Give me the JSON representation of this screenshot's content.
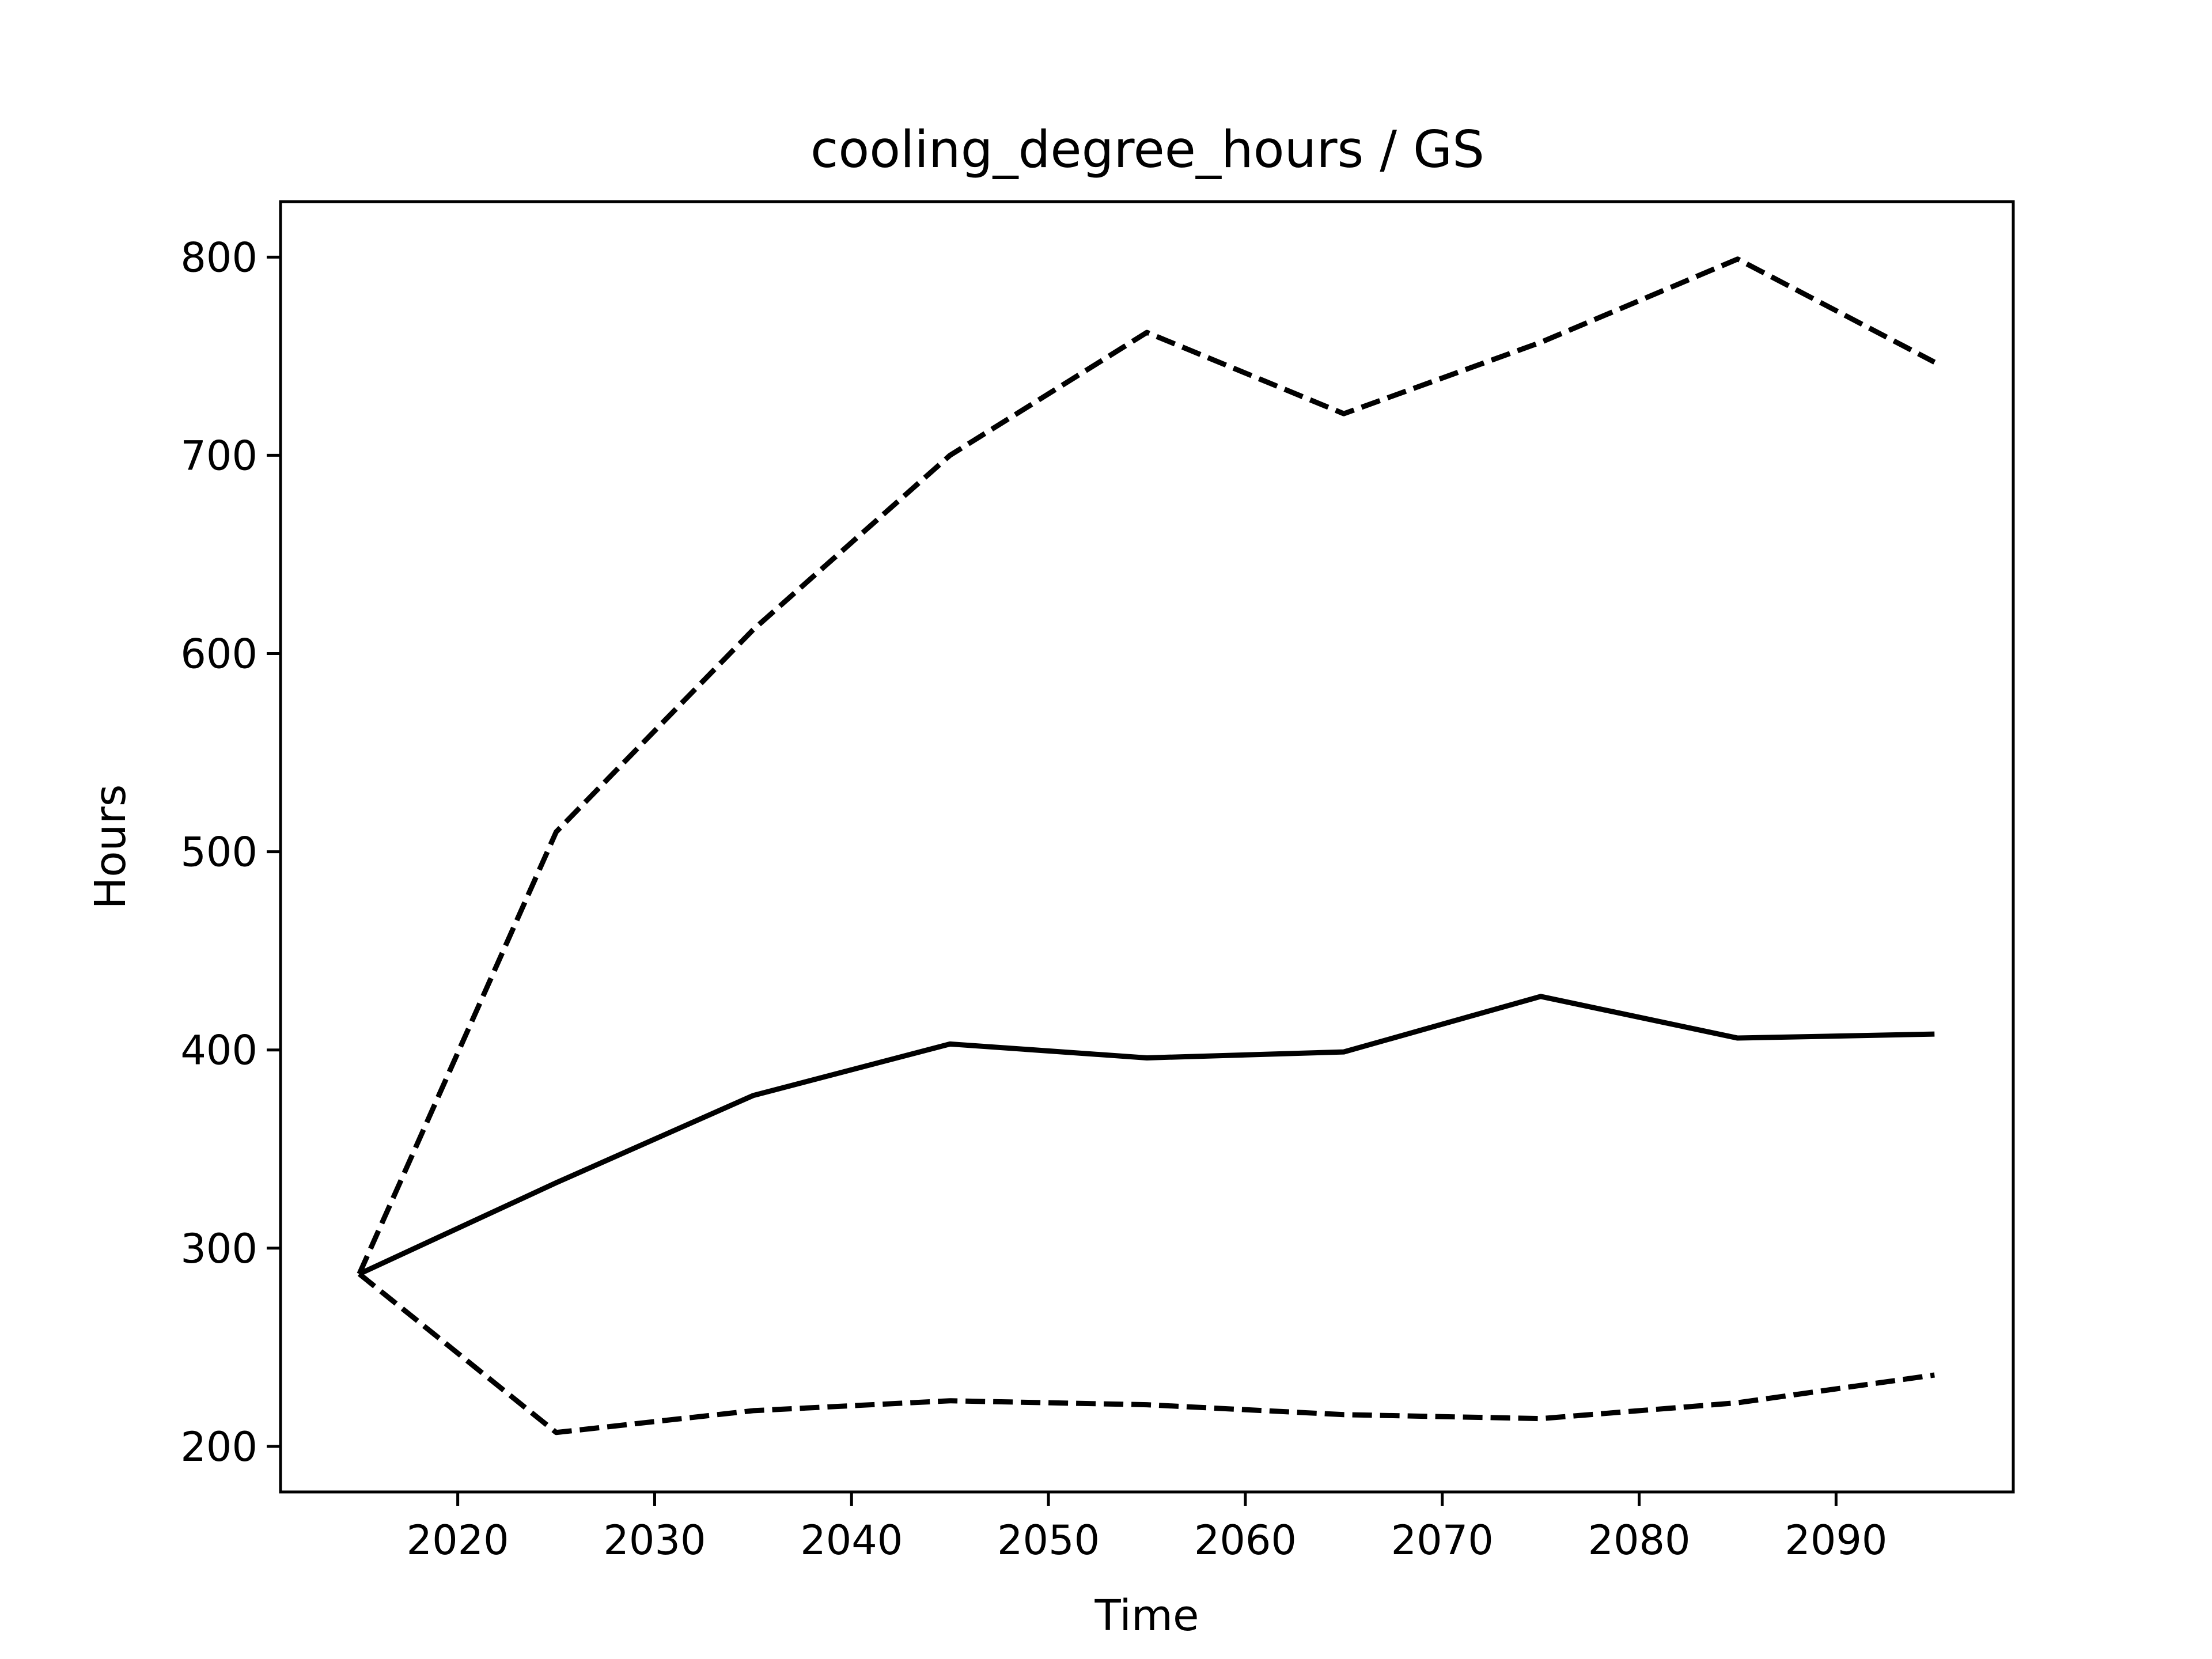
{
  "chart_data": {
    "type": "line",
    "title": "cooling_degree_hours / GS",
    "xlabel": "Time",
    "ylabel": "Hours",
    "xlim": [
      2011,
      2099
    ],
    "ylim": [
      177,
      828
    ],
    "x_ticks": [
      2020,
      2030,
      2040,
      2050,
      2060,
      2070,
      2080,
      2090
    ],
    "y_ticks": [
      200,
      300,
      400,
      500,
      600,
      700,
      800
    ],
    "grid": false,
    "x": [
      2015,
      2025,
      2035,
      2045,
      2055,
      2065,
      2075,
      2085,
      2095
    ],
    "series": [
      {
        "style": "solid",
        "color": "#000000",
        "values": [
          287,
          333,
          377,
          403,
          396,
          399,
          427,
          406,
          408
        ]
      },
      {
        "style": "dashed",
        "color": "#000000",
        "values": [
          287,
          510,
          612,
          700,
          762,
          721,
          757,
          799,
          747
        ]
      },
      {
        "style": "dashed",
        "color": "#000000",
        "values": [
          287,
          207,
          218,
          223,
          221,
          216,
          214,
          222,
          236
        ]
      }
    ]
  }
}
